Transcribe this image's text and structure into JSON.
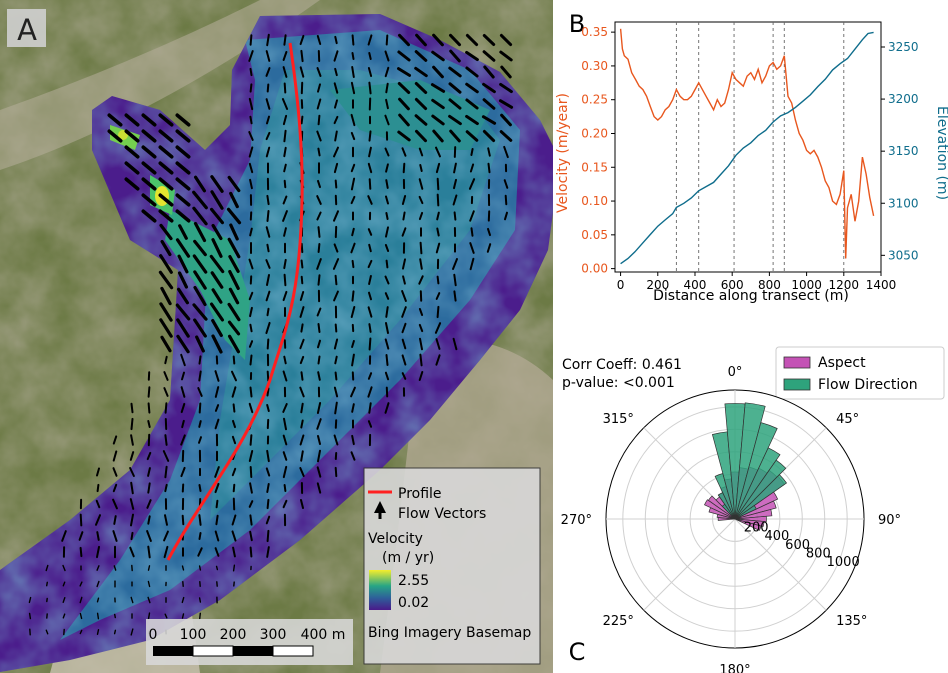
{
  "panel_a": {
    "letter": "A",
    "legend": {
      "profile": "Profile",
      "flow_vectors": "Flow Vectors",
      "velocity_title": "Velocity",
      "velocity_unit": "(m / yr)",
      "vmax": "2.55",
      "vmin": "0.02",
      "basemap": "Bing Imagery Basemap"
    },
    "scale_bar": {
      "labels": [
        "0",
        "100",
        "200",
        "300",
        "400 m"
      ]
    },
    "colors": {
      "profile": "#ff2020",
      "cmap_high": "#f4ee2c",
      "cmap_mid": "#2aa783",
      "cmap_low": "#4a1a8a"
    }
  },
  "panel_b": {
    "letter": "B"
  },
  "panel_c": {
    "letter": "C"
  },
  "chart_data": [
    {
      "id": "profile",
      "type": "line",
      "xlabel": "Distance along transect (m)",
      "ylabel_left": "Velocity (m/year)",
      "ylabel_right": "Elevation (m)",
      "xlim": [
        -30,
        1400
      ],
      "xticks": [
        0,
        200,
        400,
        600,
        800,
        1000,
        1200,
        1400
      ],
      "ylim_left": [
        -0.005,
        0.365
      ],
      "yticks_left": [
        "0.00",
        "0.05",
        "0.10",
        "0.15",
        "0.20",
        "0.25",
        "0.30",
        "0.35"
      ],
      "ylim_right": [
        3034,
        3274
      ],
      "yticks_right": [
        "3050",
        "3100",
        "3150",
        "3200",
        "3250"
      ],
      "vlines": [
        300,
        420,
        610,
        820,
        880,
        1200
      ],
      "left_color": "#e8571e",
      "right_color": "#0f6d8c",
      "series": [
        {
          "name": "Velocity",
          "axis": "left",
          "x": [
            0,
            10,
            20,
            40,
            60,
            80,
            100,
            120,
            140,
            160,
            180,
            200,
            220,
            240,
            260,
            280,
            300,
            320,
            340,
            360,
            380,
            400,
            420,
            440,
            460,
            480,
            500,
            520,
            540,
            560,
            580,
            600,
            620,
            640,
            660,
            680,
            700,
            720,
            740,
            760,
            780,
            800,
            820,
            840,
            860,
            880,
            900,
            920,
            940,
            960,
            980,
            1000,
            1020,
            1040,
            1060,
            1080,
            1100,
            1120,
            1140,
            1160,
            1180,
            1200,
            1210,
            1220,
            1240,
            1260,
            1280,
            1300,
            1320,
            1340,
            1360
          ],
          "values": [
            0.355,
            0.325,
            0.315,
            0.31,
            0.29,
            0.28,
            0.27,
            0.265,
            0.255,
            0.24,
            0.225,
            0.22,
            0.225,
            0.235,
            0.24,
            0.25,
            0.265,
            0.255,
            0.25,
            0.25,
            0.255,
            0.265,
            0.275,
            0.265,
            0.255,
            0.245,
            0.235,
            0.25,
            0.24,
            0.245,
            0.265,
            0.29,
            0.28,
            0.275,
            0.27,
            0.285,
            0.29,
            0.28,
            0.295,
            0.275,
            0.285,
            0.3,
            0.305,
            0.295,
            0.3,
            0.315,
            0.255,
            0.245,
            0.22,
            0.2,
            0.19,
            0.175,
            0.17,
            0.175,
            0.165,
            0.15,
            0.13,
            0.12,
            0.1,
            0.095,
            0.11,
            0.145,
            0.015,
            0.09,
            0.11,
            0.07,
            0.1,
            0.165,
            0.14,
            0.105,
            0.078
          ]
        },
        {
          "name": "Elevation",
          "axis": "right",
          "x": [
            0,
            40,
            80,
            120,
            160,
            200,
            240,
            280,
            300,
            340,
            380,
            420,
            460,
            500,
            540,
            580,
            620,
            660,
            700,
            740,
            780,
            820,
            860,
            900,
            940,
            980,
            1020,
            1060,
            1100,
            1140,
            1180,
            1220,
            1260,
            1300,
            1330,
            1360
          ],
          "values": [
            3042,
            3047,
            3054,
            3062,
            3070,
            3078,
            3084,
            3090,
            3096,
            3100,
            3105,
            3112,
            3116,
            3120,
            3128,
            3136,
            3146,
            3153,
            3158,
            3165,
            3170,
            3178,
            3184,
            3187,
            3192,
            3198,
            3204,
            3212,
            3219,
            3228,
            3234,
            3239,
            3248,
            3257,
            3263,
            3264
          ]
        }
      ]
    },
    {
      "id": "rose",
      "type": "polar-bar",
      "annotation_corr": "Corr Coeff: 0.461",
      "annotation_p": "p-value: <0.001",
      "angle_labels": [
        "0°",
        "45°",
        "90°",
        "135°",
        "180°",
        "225°",
        "270°",
        "315°"
      ],
      "angle_values": [
        0,
        45,
        90,
        135,
        180,
        225,
        270,
        315
      ],
      "radial_ticks": [
        "200",
        "400",
        "600",
        "800",
        "1000"
      ],
      "radial_values": [
        200,
        400,
        600,
        800,
        1000
      ],
      "rmax": 1150,
      "bin_width_deg": 10,
      "series": [
        {
          "name": "Aspect",
          "color": "#c452b5",
          "bins": [
            -90,
            -80,
            -70,
            -60,
            -50,
            -40,
            -30,
            -20,
            -10,
            0,
            10,
            20,
            30,
            40,
            50,
            60,
            70,
            80,
            90,
            100,
            110
          ],
          "values": [
            150,
            160,
            240,
            300,
            290,
            240,
            260,
            300,
            360,
            420,
            460,
            480,
            500,
            530,
            540,
            420,
            380,
            330,
            280,
            260,
            240
          ]
        },
        {
          "name": "Flow Direction",
          "color": "#2ea37c",
          "bins": [
            -40,
            -30,
            -20,
            -10,
            0,
            10,
            20,
            30,
            40,
            50,
            60
          ],
          "values": [
            160,
            260,
            420,
            780,
            1030,
            1040,
            890,
            700,
            640,
            560,
            210
          ]
        }
      ]
    }
  ]
}
